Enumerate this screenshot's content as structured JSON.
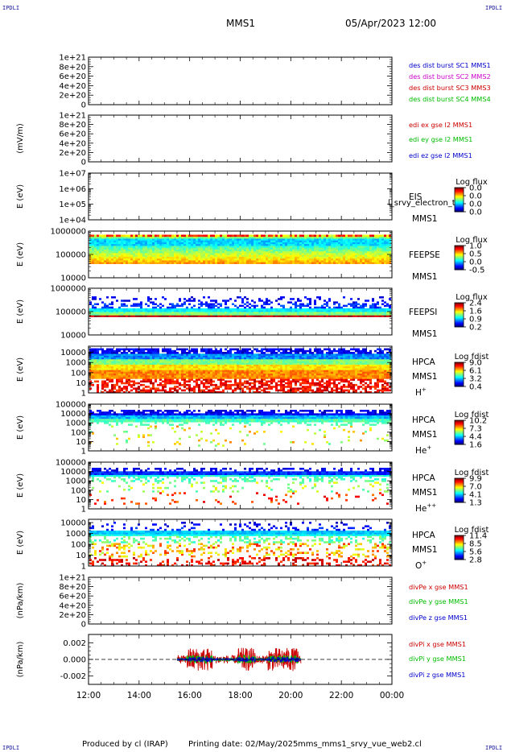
{
  "header": {
    "corner_label": "IPDLI",
    "spacecraft": "MMS1",
    "date_time": "05/Apr/2023 12:00"
  },
  "footer": {
    "produced_by": "Produced by cl (IRAP)",
    "printing_date": "Printing date: 02/May/2025",
    "script_name": "mms_mms1_srvy_vue_web2.cl"
  },
  "chart_data": [
    {
      "id": "des-dist",
      "type": "line",
      "ylabel": "",
      "yticks": [
        "0",
        "2e+20",
        "4e+20",
        "6e+20",
        "8e+20",
        "1e+21"
      ],
      "ylim": [
        0,
        1e+21
      ],
      "log": false,
      "dashed_zero": true,
      "series": [
        {
          "name": "des dist burst SC1 MMS1",
          "color": "#0000cc",
          "values": []
        },
        {
          "name": "des dist burst SC2 MMS2",
          "color": "#cc00cc",
          "values": []
        },
        {
          "name": "des dist burst SC3 MMS3",
          "color": "#cc0000",
          "values": []
        },
        {
          "name": "des dist burst SC4 MMS4",
          "color": "#00bb00",
          "values": []
        }
      ]
    },
    {
      "id": "edi",
      "type": "line",
      "ylabel": "(mV/m)",
      "yticks": [
        "0",
        "2e+20",
        "4e+20",
        "6e+20",
        "8e+20",
        "1e+21"
      ],
      "ylim": [
        0,
        1e+21
      ],
      "log": false,
      "dashed_zero": true,
      "series": [
        {
          "name": "edi ex gse l2 MMS1",
          "color": "#cc0000",
          "values": []
        },
        {
          "name": "edi ey gse l2 MMS1",
          "color": "#00bb00",
          "values": []
        },
        {
          "name": "edi ez gse l2 MMS1",
          "color": "#0000cc",
          "values": []
        }
      ]
    },
    {
      "id": "eis",
      "type": "heatmap",
      "ylabel": "E (eV)",
      "yticks": [
        "1e+04",
        "1e+05",
        "1e+06",
        "1e+07"
      ],
      "ylim": [
        10000,
        10000000
      ],
      "log": true,
      "instrument": "EIS",
      "overlay_text": "l_srvy_electron_to",
      "spacecraft": "MMS1",
      "colorbar_title": "Log flux",
      "colorbar_ticks": [
        "0.0",
        "0.0",
        "0.0",
        "0.0"
      ],
      "has_data": false
    },
    {
      "id": "feeps-e",
      "type": "heatmap",
      "ylabel": "E (eV)",
      "yticks": [
        "10000",
        "100000",
        "1000000"
      ],
      "ylim": [
        10000,
        1000000
      ],
      "log": true,
      "instrument": "FEEPSE",
      "spacecraft": "MMS1",
      "colorbar_title": "Log flux",
      "colorbar_ticks": [
        "1.0",
        "0.5",
        "0.0",
        "-0.5"
      ],
      "has_data": true,
      "data_yrange": [
        40000,
        700000
      ],
      "profile": "feepse"
    },
    {
      "id": "feeps-i",
      "type": "heatmap",
      "ylabel": "E (eV)",
      "yticks": [
        "10000",
        "100000",
        "1000000"
      ],
      "ylim": [
        10000,
        1000000
      ],
      "log": true,
      "instrument": "FEEPSI",
      "spacecraft": "MMS1",
      "colorbar_title": "Log flux",
      "colorbar_ticks": [
        "2.4",
        "1.6",
        "0.9",
        "0.2"
      ],
      "has_data": true,
      "data_yrange": [
        60000,
        450000
      ],
      "profile": "feepsi"
    },
    {
      "id": "hpca-h",
      "type": "heatmap",
      "ylabel": "E (eV)",
      "yticks": [
        "1",
        "10",
        "100",
        "1000",
        "10000"
      ],
      "ylim": [
        1,
        40000
      ],
      "log": true,
      "instrument": "HPCA",
      "spacecraft": "MMS1",
      "species": "H",
      "species_charge": "+",
      "colorbar_title": "Log fdist",
      "colorbar_ticks": [
        "9.0",
        "6.1",
        "3.2",
        "0.4"
      ],
      "has_data": true,
      "data_yrange": [
        1,
        25000
      ],
      "profile": "hpca_h"
    },
    {
      "id": "hpca-he",
      "type": "heatmap",
      "ylabel": "E (eV)",
      "yticks": [
        "1",
        "10",
        "100",
        "1000",
        "10000",
        "100000"
      ],
      "ylim": [
        1,
        100000
      ],
      "log": true,
      "instrument": "HPCA",
      "spacecraft": "MMS1",
      "species": "He",
      "species_charge": "+",
      "colorbar_title": "Log fdist",
      "colorbar_ticks": [
        "10.2",
        "7.3",
        "4.4",
        "1.6"
      ],
      "has_data": true,
      "data_yrange": [
        3,
        25000
      ],
      "profile": "hpca_he"
    },
    {
      "id": "hpca-hepp",
      "type": "heatmap",
      "ylabel": "E (eV)",
      "yticks": [
        "1",
        "10",
        "100",
        "1000",
        "10000",
        "100000"
      ],
      "ylim": [
        1,
        100000
      ],
      "log": true,
      "instrument": "HPCA",
      "spacecraft": "MMS1",
      "species": "He",
      "species_charge": "++",
      "colorbar_title": "Log fdist",
      "colorbar_ticks": [
        "9.9",
        "7.0",
        "4.1",
        "1.3"
      ],
      "has_data": true,
      "data_yrange": [
        3,
        25000
      ],
      "profile": "hpca_hepp"
    },
    {
      "id": "hpca-o",
      "type": "heatmap",
      "ylabel": "E (eV)",
      "yticks": [
        "1",
        "10",
        "100",
        "1000",
        "10000"
      ],
      "ylim": [
        1,
        20000
      ],
      "log": true,
      "instrument": "HPCA",
      "spacecraft": "MMS1",
      "species": "O",
      "species_charge": "+",
      "colorbar_title": "Log fdist",
      "colorbar_ticks": [
        "11.4",
        "8.5",
        "5.6",
        "2.8"
      ],
      "has_data": true,
      "data_yrange": [
        1,
        12000
      ],
      "profile": "hpca_o"
    },
    {
      "id": "divpe",
      "type": "line",
      "ylabel": "(nPa/km)",
      "yticks": [
        "0",
        "2e+20",
        "4e+20",
        "6e+20",
        "8e+20",
        "1e+21"
      ],
      "ylim": [
        0,
        1e+21
      ],
      "log": false,
      "dashed_zero": true,
      "series": [
        {
          "name": "divPe x gse MMS1",
          "color": "#cc0000",
          "values": []
        },
        {
          "name": "divPe y gse MMS1",
          "color": "#00bb00",
          "values": []
        },
        {
          "name": "divPe z gse MMS1",
          "color": "#0000cc",
          "values": []
        }
      ]
    },
    {
      "id": "divpi",
      "type": "line",
      "ylabel": "(nPa/km)",
      "yticks": [
        "-0.002",
        "0.000",
        "0.002"
      ],
      "ylim": [
        -0.003,
        0.003
      ],
      "log": false,
      "dashed_zero": true,
      "data_xrange": [
        15.5,
        20.4
      ],
      "series": [
        {
          "name": "divPi x gse MMS1",
          "color": "#cc0000",
          "amplitude": 0.0014
        },
        {
          "name": "divPi y gse MMS1",
          "color": "#00bb00",
          "amplitude": 0.0005
        },
        {
          "name": "divPi z gse MMS1",
          "color": "#0000cc",
          "amplitude": 0.0003
        }
      ]
    }
  ],
  "x_axis": {
    "ticks": [
      "12:00",
      "14:00",
      "16:00",
      "18:00",
      "20:00",
      "22:00",
      "00:00"
    ],
    "range_hours": [
      12,
      24
    ]
  }
}
